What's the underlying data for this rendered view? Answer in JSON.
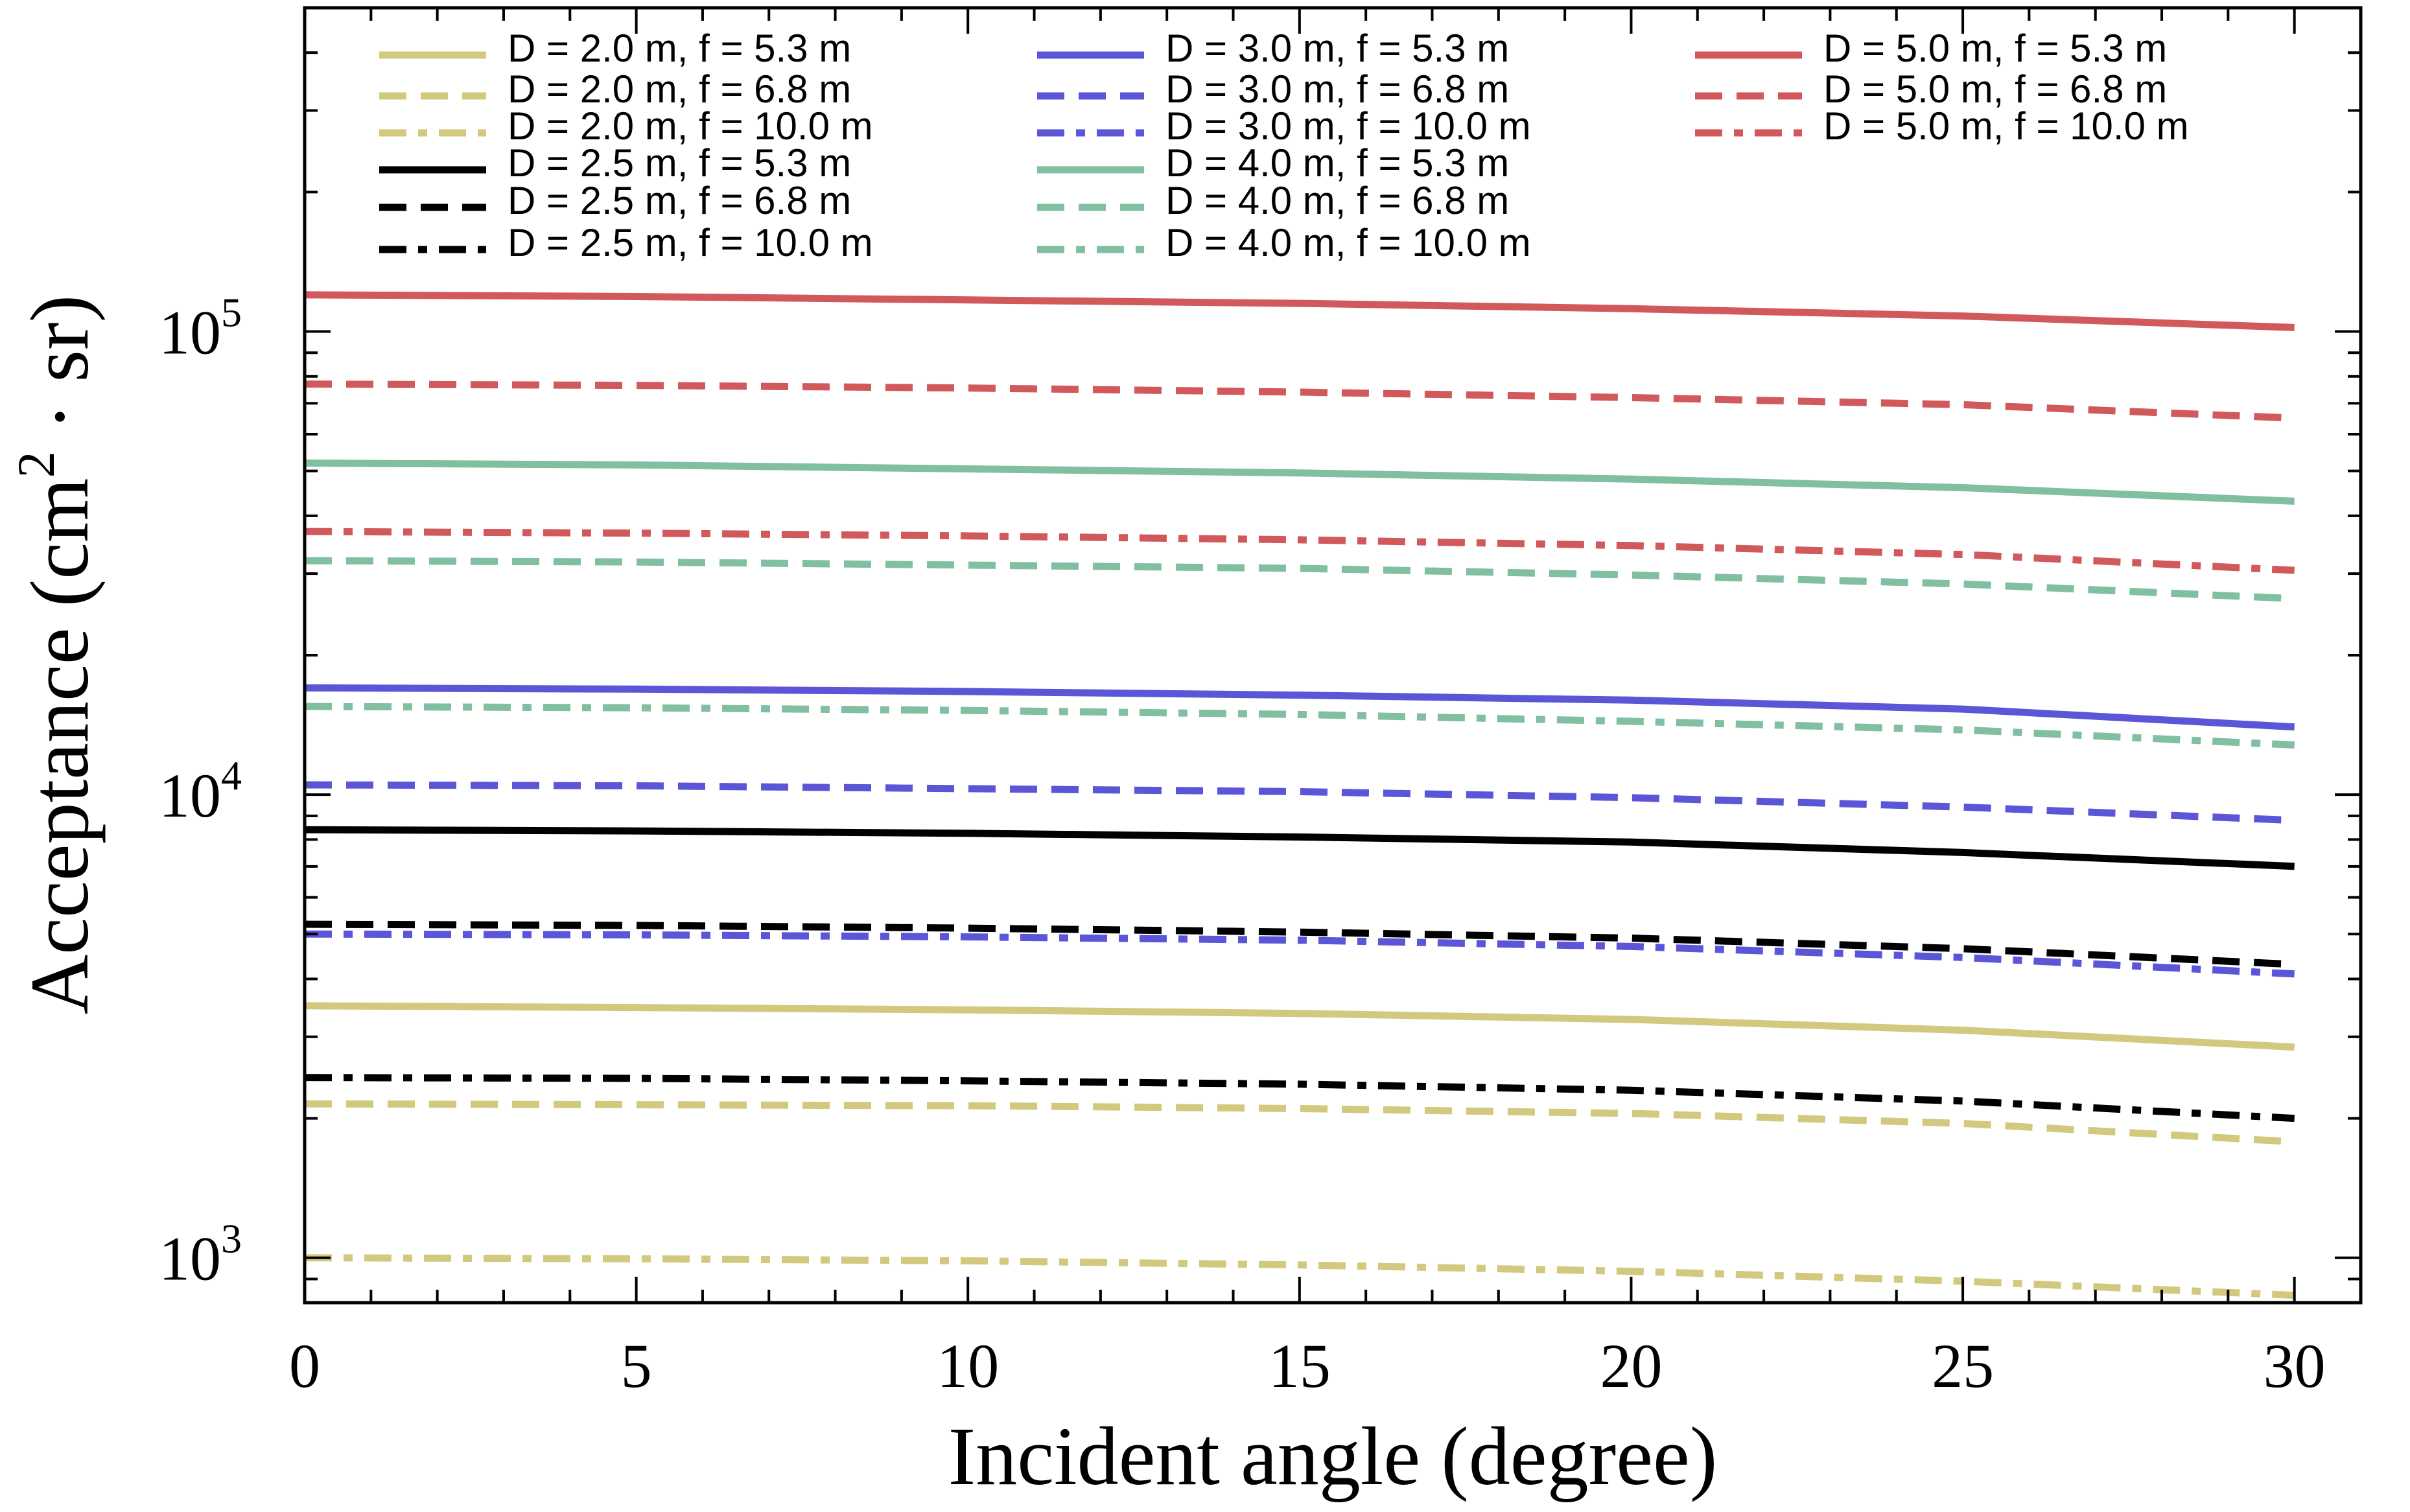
{
  "chart_data": {
    "type": "line",
    "xlabel": "Incident angle (degree)",
    "ylabel": "Acceptance (cm2 · sr)",
    "ylabel_parts": {
      "pre": "Acceptance (cm",
      "sup": "2",
      "post": " · sr)"
    },
    "xlim": [
      0,
      31
    ],
    "ylim": [
      800,
      500000
    ],
    "yscale": "log",
    "x_ticks": [
      "0",
      "5",
      "10",
      "15",
      "20",
      "25",
      "30"
    ],
    "y_ticks": [
      {
        "base": "10",
        "exp": "3",
        "value": 1000
      },
      {
        "base": "10",
        "exp": "4",
        "value": 10000
      },
      {
        "base": "10",
        "exp": "5",
        "value": 100000
      }
    ],
    "grid": false,
    "legend_position": "top",
    "series": [
      {
        "name": "D = 2.0 m, f = 5.3 m",
        "color": "#d2c97e",
        "style": "solid",
        "x": [
          0,
          5,
          10,
          15,
          20,
          25,
          30
        ],
        "y": [
          3500,
          3470,
          3430,
          3370,
          3270,
          3100,
          2850
        ]
      },
      {
        "name": "D = 2.0 m, f = 6.8 m",
        "color": "#d2c97e",
        "style": "dash",
        "x": [
          0,
          5,
          10,
          15,
          20,
          25,
          30
        ],
        "y": [
          2150,
          2140,
          2130,
          2100,
          2050,
          1950,
          1780
        ]
      },
      {
        "name": "D = 2.0 m, f = 10.0 m",
        "color": "#d2c97e",
        "style": "dashdot",
        "x": [
          0,
          5,
          10,
          15,
          20,
          25,
          30
        ],
        "y": [
          1000,
          995,
          985,
          965,
          935,
          890,
          830
        ]
      },
      {
        "name": "D = 2.5 m, f = 5.3 m",
        "color": "#000000",
        "style": "solid",
        "x": [
          0,
          5,
          10,
          15,
          20,
          25,
          30
        ],
        "y": [
          8400,
          8350,
          8250,
          8100,
          7900,
          7500,
          7000
        ]
      },
      {
        "name": "D = 2.5 m, f = 6.8 m",
        "color": "#000000",
        "style": "dash",
        "x": [
          0,
          5,
          10,
          15,
          20,
          25,
          30
        ],
        "y": [
          5250,
          5220,
          5150,
          5050,
          4900,
          4650,
          4300
        ]
      },
      {
        "name": "D = 2.5 m, f = 10.0 m",
        "color": "#000000",
        "style": "dashdot",
        "x": [
          0,
          5,
          10,
          15,
          20,
          25,
          30
        ],
        "y": [
          2450,
          2440,
          2410,
          2370,
          2300,
          2180,
          2000
        ]
      },
      {
        "name": "D = 3.0 m, f = 5.3 m",
        "color": "#5b55d8",
        "style": "solid",
        "x": [
          0,
          5,
          10,
          15,
          20,
          25,
          30
        ],
        "y": [
          17000,
          16900,
          16700,
          16400,
          16000,
          15300,
          14000
        ]
      },
      {
        "name": "D = 3.0 m, f = 6.8 m",
        "color": "#5b55d8",
        "style": "dash",
        "x": [
          0,
          5,
          10,
          15,
          20,
          25,
          30
        ],
        "y": [
          10500,
          10450,
          10300,
          10150,
          9850,
          9400,
          8800
        ]
      },
      {
        "name": "D = 3.0 m, f = 10.0 m",
        "color": "#5b55d8",
        "style": "dashdot",
        "x": [
          0,
          5,
          10,
          15,
          20,
          25,
          30
        ],
        "y": [
          5000,
          4980,
          4930,
          4850,
          4700,
          4450,
          4100
        ]
      },
      {
        "name": "D = 4.0 m, f = 5.3 m",
        "color": "#80bf9f",
        "style": "solid",
        "x": [
          0,
          5,
          10,
          15,
          20,
          25,
          30
        ],
        "y": [
          52000,
          51500,
          50500,
          49500,
          48000,
          46000,
          43000
        ]
      },
      {
        "name": "D = 4.0 m, f = 6.8 m",
        "color": "#80bf9f",
        "style": "dash",
        "x": [
          0,
          5,
          10,
          15,
          20,
          25,
          30
        ],
        "y": [
          32000,
          31800,
          31300,
          30800,
          29800,
          28500,
          26500
        ]
      },
      {
        "name": "D = 4.0 m, f = 10.0 m",
        "color": "#80bf9f",
        "style": "dashdot",
        "x": [
          0,
          5,
          10,
          15,
          20,
          25,
          30
        ],
        "y": [
          15500,
          15400,
          15200,
          14900,
          14400,
          13800,
          12800
        ]
      },
      {
        "name": "D = 5.0 m, f = 5.3 m",
        "color": "#d1595b",
        "style": "solid",
        "x": [
          0,
          5,
          10,
          15,
          20,
          25,
          30
        ],
        "y": [
          120000,
          119000,
          117000,
          115000,
          112000,
          108000,
          102000
        ]
      },
      {
        "name": "D = 5.0 m, f = 6.8 m",
        "color": "#d1595b",
        "style": "dash",
        "x": [
          0,
          5,
          10,
          15,
          20,
          25,
          30
        ],
        "y": [
          77000,
          76500,
          75500,
          74000,
          72000,
          69500,
          65000
        ]
      },
      {
        "name": "D = 5.0 m, f = 10.0 m",
        "color": "#d1595b",
        "style": "dashdot",
        "x": [
          0,
          5,
          10,
          15,
          20,
          25,
          30
        ],
        "y": [
          37000,
          36700,
          36200,
          35500,
          34500,
          33000,
          30500
        ]
      }
    ]
  }
}
